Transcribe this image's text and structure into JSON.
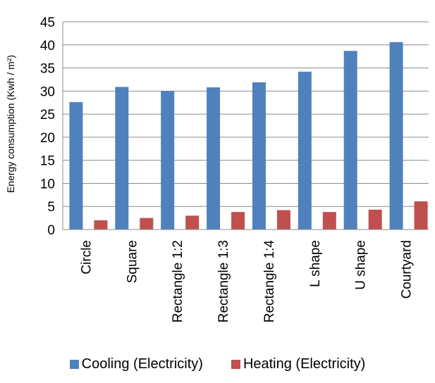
{
  "chart_data": {
    "type": "bar",
    "ylabel": "Energy consumption (Kwh / m²)",
    "ylim": [
      0,
      45
    ],
    "yticks": [
      0,
      5,
      10,
      15,
      20,
      25,
      30,
      35,
      40,
      45
    ],
    "grid": true,
    "legend_position": "bottom",
    "categories": [
      "Circle",
      "Square",
      "Rectangle 1:2",
      "Rectangle 1:3",
      "Rectangle 1:4",
      "L shape",
      "U shape",
      "Courtyard"
    ],
    "series": [
      {
        "name": "Cooling (Electricity)",
        "color": "#4f81bd",
        "values": [
          27.6,
          30.9,
          30.0,
          30.8,
          31.9,
          34.2,
          38.7,
          40.6
        ]
      },
      {
        "name": "Heating (Electricity)",
        "color": "#c0504d",
        "values": [
          2.0,
          2.5,
          3.0,
          3.8,
          4.2,
          3.8,
          4.3,
          6.1
        ]
      }
    ]
  }
}
